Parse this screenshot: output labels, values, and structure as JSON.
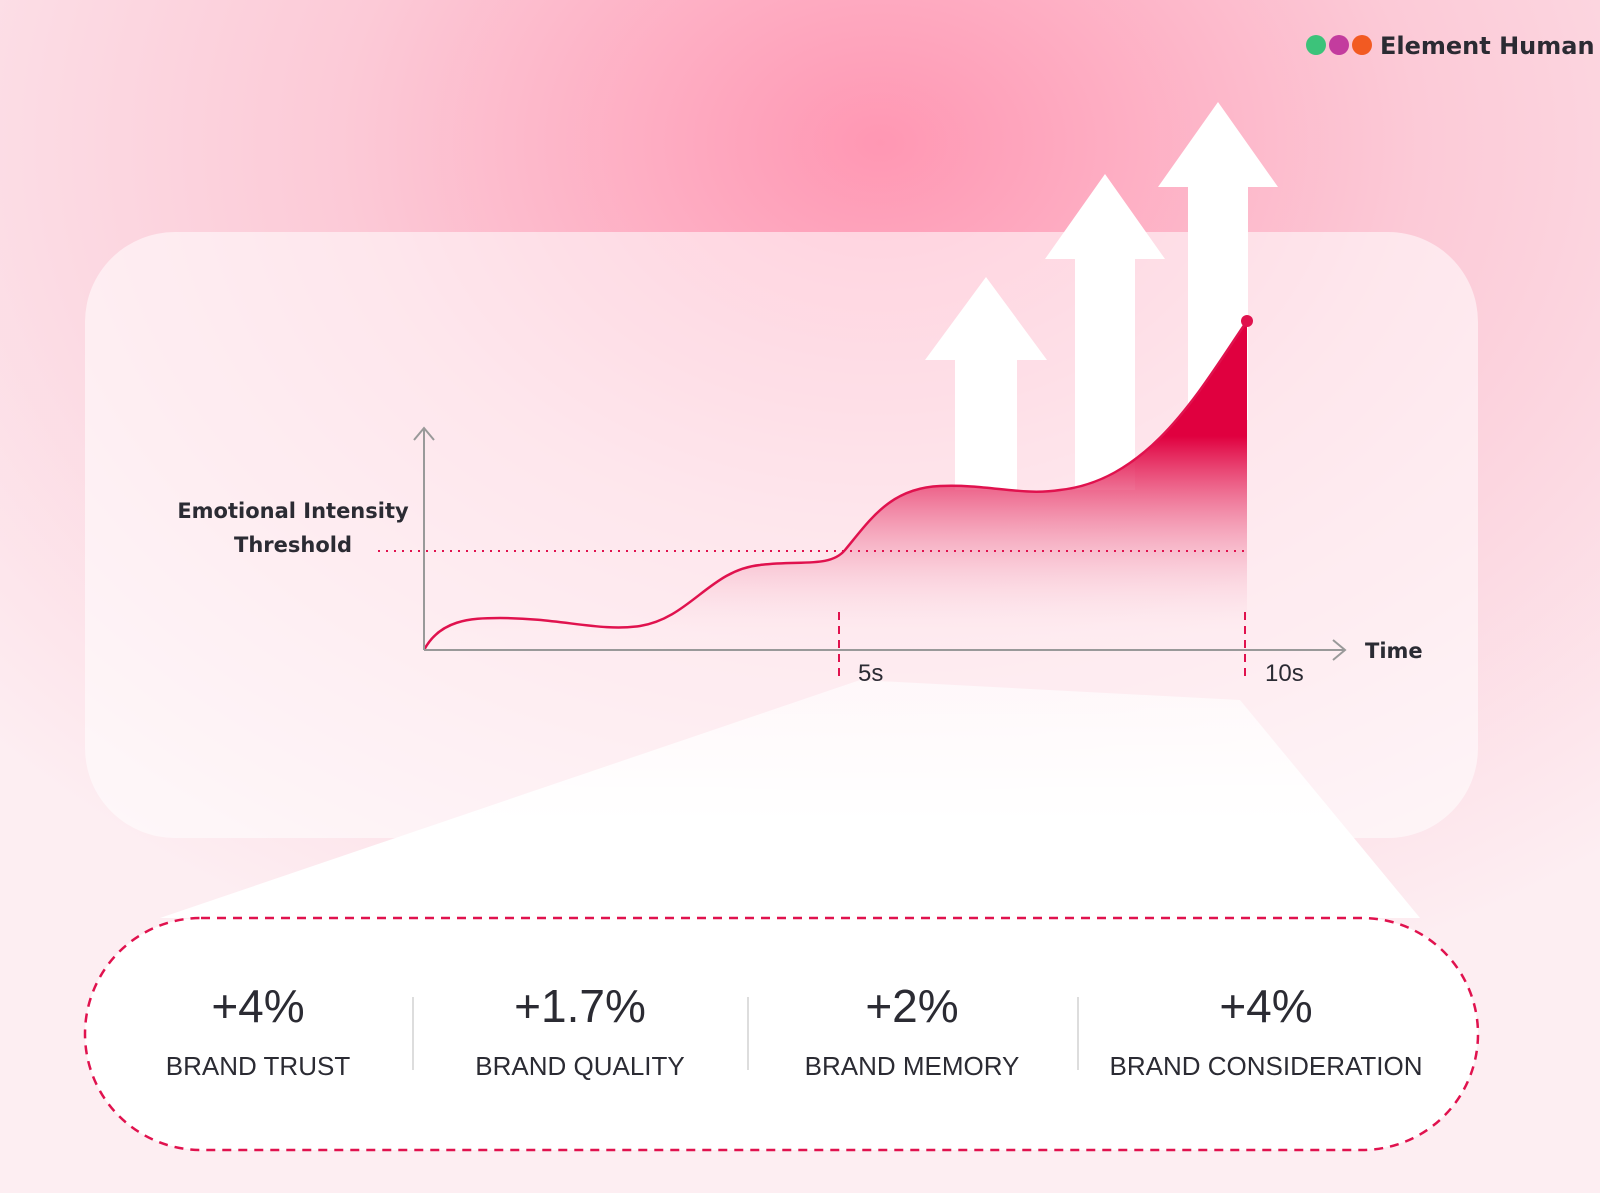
{
  "logo": {
    "text": "Element Human"
  },
  "chart": {
    "y_label": [
      "Emotional Intensity",
      "Threshold"
    ],
    "x_label": "Time",
    "x_ticks": [
      "5s",
      "10s"
    ]
  },
  "stats": [
    {
      "value": "+4%",
      "label": "BRAND TRUST"
    },
    {
      "value": "+1.7%",
      "label": "BRAND QUALITY"
    },
    {
      "value": "+2%",
      "label": "BRAND MEMORY"
    },
    {
      "value": "+4%",
      "label": "BRAND CONSIDERATION"
    }
  ]
}
